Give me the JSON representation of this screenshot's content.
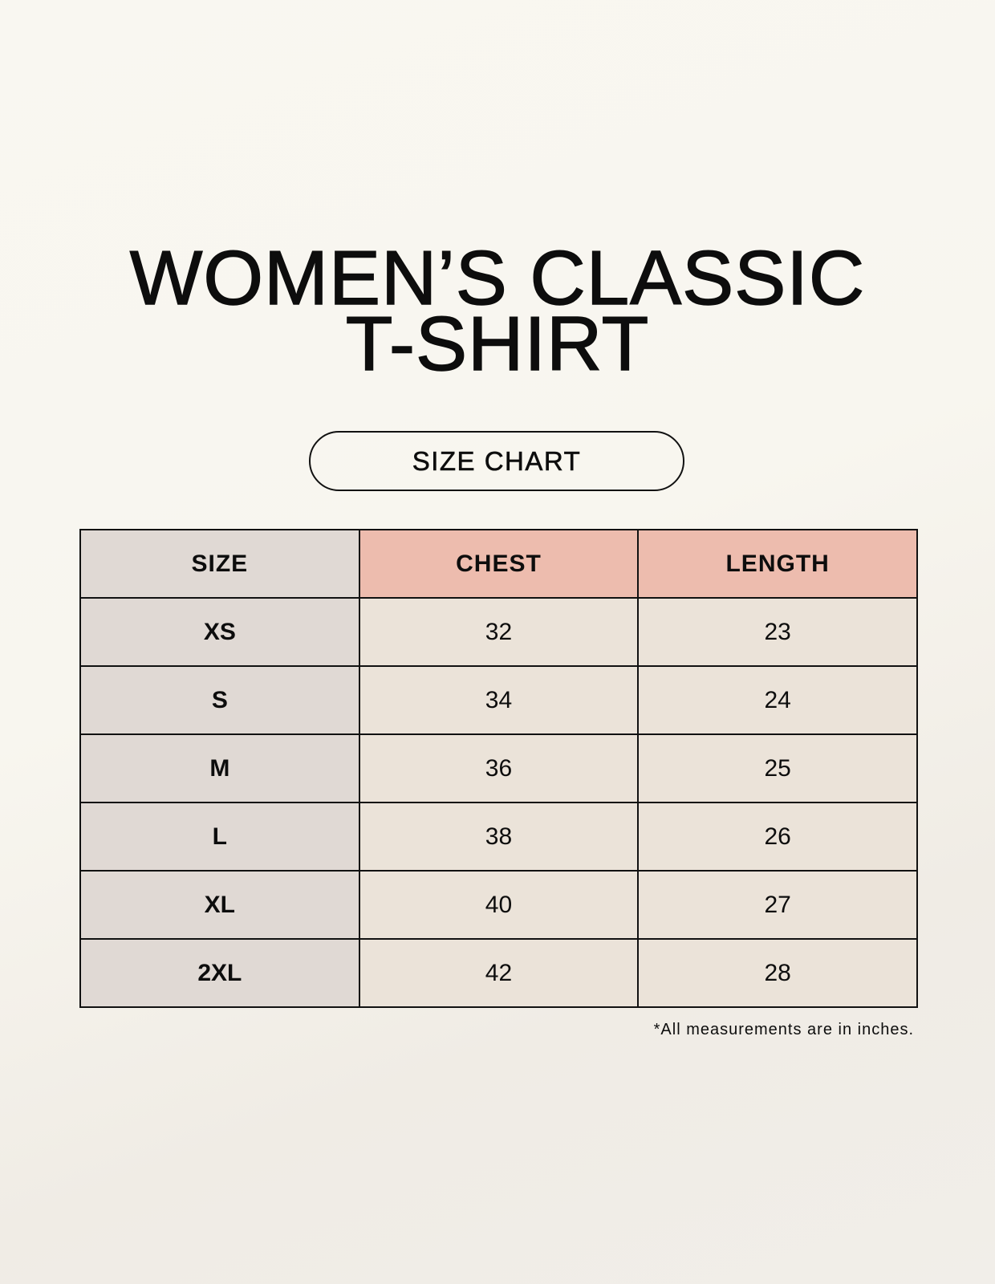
{
  "title_line1": "WOMEN’S CLASSIC",
  "title_line2": "T-SHIRT",
  "badge": "SIZE CHART",
  "colors": {
    "size_column": "#e0d9d4",
    "header_accent": "#edbcae",
    "cell": "#ebe3d9"
  },
  "table": {
    "headers": [
      "SIZE",
      "CHEST",
      "LENGTH"
    ],
    "rows": [
      [
        "XS",
        "32",
        "23"
      ],
      [
        "S",
        "34",
        "24"
      ],
      [
        "M",
        "36",
        "25"
      ],
      [
        "L",
        "38",
        "26"
      ],
      [
        "XL",
        "40",
        "27"
      ],
      [
        "2XL",
        "42",
        "28"
      ]
    ]
  },
  "footnote": "*All measurements are in inches."
}
